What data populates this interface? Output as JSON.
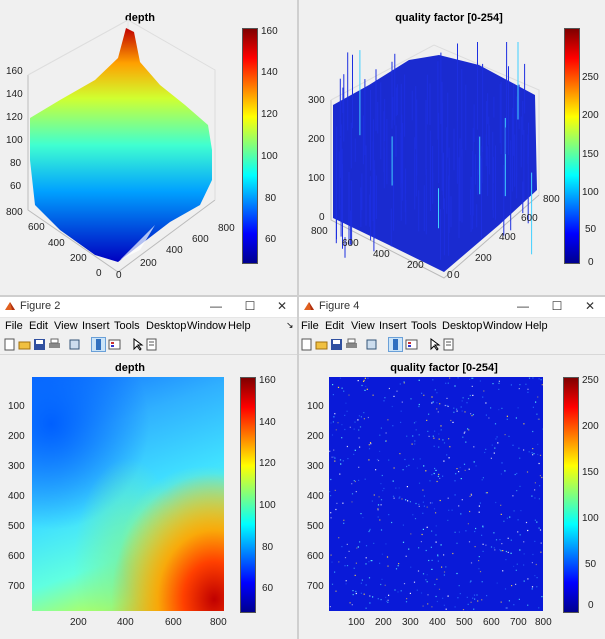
{
  "fig1": {
    "title": "depth",
    "zticks": [
      "160",
      "140",
      "120",
      "100",
      "80",
      "60"
    ],
    "yticks": [
      "800",
      "600",
      "400",
      "200",
      "0"
    ],
    "xticks": [
      "0",
      "200",
      "400",
      "600",
      "800"
    ],
    "cbticks": [
      "160",
      "140",
      "120",
      "100",
      "80",
      "60"
    ]
  },
  "fig3": {
    "title": "quality factor [0-254]",
    "zticks": [
      "300",
      "200",
      "100",
      "0"
    ],
    "yticks": [
      "800",
      "600",
      "400",
      "200",
      "0"
    ],
    "xticks": [
      "0",
      "200",
      "400",
      "600",
      "800"
    ],
    "cbticks": [
      "250",
      "200",
      "150",
      "100",
      "50",
      "0"
    ]
  },
  "win2": {
    "window_title": "Figure 2",
    "menu": [
      "File",
      "Edit",
      "View",
      "Insert",
      "Tools",
      "Desktop",
      "Window",
      "Help"
    ],
    "minimize": "—",
    "maximize": "☐",
    "close": "✕",
    "plot": {
      "title": "depth",
      "yticks": [
        "100",
        "200",
        "300",
        "400",
        "500",
        "600",
        "700"
      ],
      "xticks": [
        "200",
        "400",
        "600",
        "800"
      ],
      "cbticks": [
        "160",
        "140",
        "120",
        "100",
        "80",
        "60"
      ]
    }
  },
  "win4": {
    "window_title": "Figure 4",
    "menu": [
      "File",
      "Edit",
      "View",
      "Insert",
      "Tools",
      "Desktop",
      "Window",
      "Help"
    ],
    "minimize": "—",
    "maximize": "☐",
    "close": "✕",
    "plot": {
      "title": "quality factor [0-254]",
      "yticks": [
        "100",
        "200",
        "300",
        "400",
        "500",
        "600",
        "700"
      ],
      "xticks": [
        "100",
        "200",
        "300",
        "400",
        "500",
        "600",
        "700",
        "800"
      ],
      "cbticks": [
        "250",
        "200",
        "150",
        "100",
        "50",
        "0"
      ]
    }
  },
  "colors": {
    "colormap": [
      "#00008f",
      "#0000ff",
      "#007fff",
      "#00ffff",
      "#7fff7f",
      "#ffff00",
      "#ff7f00",
      "#ff0000",
      "#7f0000"
    ],
    "titlebar": "#ffffff",
    "divider": "#cfcfcf"
  },
  "icons": [
    "matlab-figure-icon",
    "new-figure-icon",
    "open-file-icon",
    "save-icon",
    "print-icon",
    "link-icon",
    "dock-icon",
    "legend-icon",
    "pointer-icon",
    "property-editor-icon"
  ]
}
